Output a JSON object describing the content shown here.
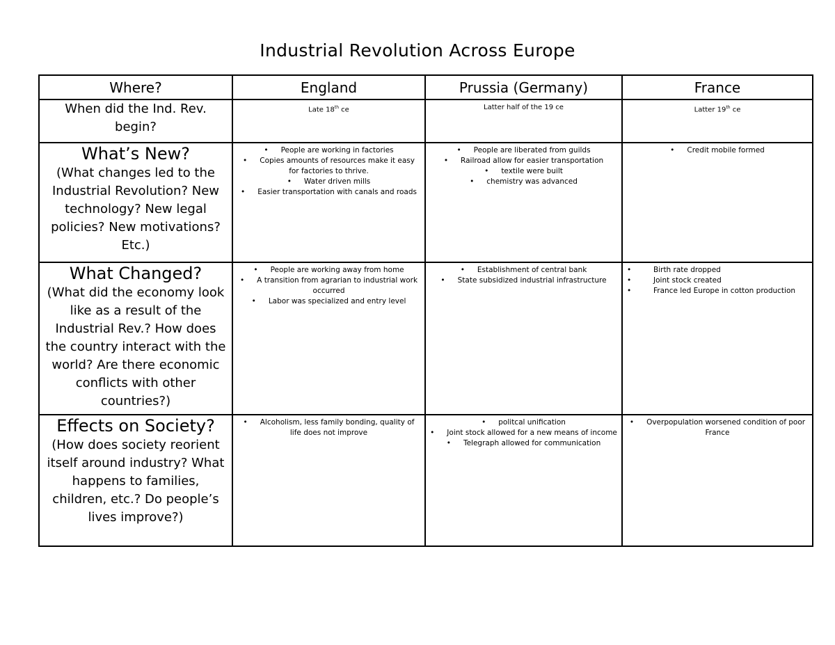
{
  "title": "Industrial Revolution Across Europe",
  "headers": [
    "Where?",
    "England",
    "Prussia (Germany)",
    "France"
  ],
  "rows": [
    {
      "question": "When did the Ind. Rev. begin?",
      "question_title": "",
      "cells": [
        {
          "text": "Late 18",
          "sup": "th",
          "after": " ce"
        },
        {
          "text": "Latter half of the 19 ce",
          "sup": "",
          "after": ""
        },
        {
          "text": "Latter 19",
          "sup": "th",
          "after": " ce"
        }
      ]
    },
    {
      "question_title": "What’s New?",
      "question": "(What changes led to the Industrial Revolution? New technology? New legal policies? New motivations? Etc.)",
      "lists": [
        [
          "People are working in factories",
          "Copies amounts of resources make it easy for factories to thrive.",
          "Water driven mills",
          "Easier transportation with canals and roads"
        ],
        [
          "People are liberated from guilds",
          "Railroad allow for easier transportation",
          "textile were built",
          "chemistry was advanced"
        ],
        [
          "Credit mobile formed"
        ]
      ]
    },
    {
      "question_title": "What Changed?",
      "question": "(What did the economy look like as a result of the Industrial Rev.? How does the country interact with the world? Are there economic conflicts with other countries?)",
      "lists": [
        [
          "People are working away from home",
          "A transition from agrarian to industrial work occurred",
          "Labor was specialized and entry level"
        ],
        [
          "Establishment of central bank",
          "State subsidized industrial infrastructure"
        ],
        [
          "Birth rate dropped",
          "Joint stock created",
          "France led Europe in cotton production"
        ]
      ]
    },
    {
      "question_title": "Effects on Society?",
      "question": "(How does society reorient itself around industry? What happens to families, children, etc.? Do people’s lives improve?)",
      "lists": [
        [
          "Alcoholism, less family bonding, quality of life does not improve"
        ],
        [
          "politcal unification",
          "Joint stock allowed for a new means of income",
          "Telegraph allowed for communication"
        ],
        [
          "Overpopulation worsened condition of poor France"
        ]
      ]
    }
  ]
}
